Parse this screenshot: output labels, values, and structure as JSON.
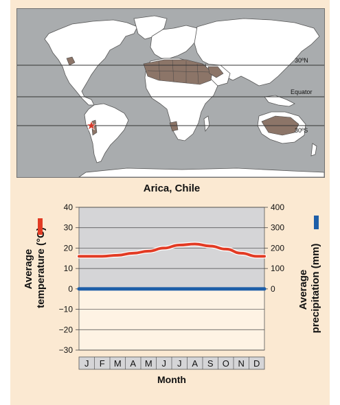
{
  "map": {
    "lat_labels": [
      "30ºN",
      "Equator",
      "30ºS"
    ],
    "location_marker": "star-icon",
    "colors": {
      "ocean": "#a9acae",
      "land": "#ffffff",
      "desert": "#8c7568",
      "marker": "#d43a2a"
    }
  },
  "chart_data": {
    "type": "line",
    "title": "Arica, Chile",
    "categories": [
      "J",
      "F",
      "M",
      "A",
      "M",
      "J",
      "J",
      "A",
      "S",
      "O",
      "N",
      "D"
    ],
    "xlabel": "Month",
    "ylabel_left": "Average temperature (°C)",
    "ylabel_right": "Average precipitation (mm)",
    "ylim_left": [
      -30,
      40
    ],
    "ylim_right": [
      0,
      400
    ],
    "yticks_left": [
      "40",
      "30",
      "20",
      "10",
      "0",
      "−10",
      "−20",
      "−30"
    ],
    "yticks_right": [
      "400",
      "300",
      "200",
      "100",
      "0"
    ],
    "grid": true,
    "series": [
      {
        "name": "Average temperature (°C)",
        "axis": "left",
        "color": "#e23b24",
        "values": [
          16,
          16,
          16.5,
          17.5,
          18.5,
          20,
          21.5,
          22,
          21,
          19.5,
          17.5,
          16
        ]
      },
      {
        "name": "Average precipitation (mm)",
        "axis": "right",
        "color": "#1d5ea8",
        "values": [
          0,
          0,
          0,
          0,
          0,
          0,
          0,
          0,
          0,
          0,
          0,
          0
        ]
      }
    ]
  }
}
